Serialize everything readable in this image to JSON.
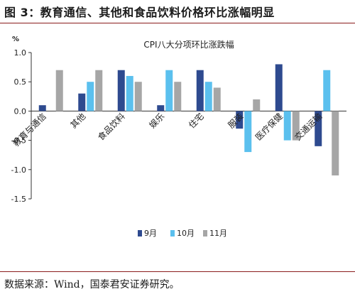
{
  "figure": {
    "title": "图 3：教育通信、其他和食品饮料价格环比涨幅明显",
    "source": "数据来源：Wind，国泰君安证券研究。"
  },
  "colors": {
    "sep": "#2e4a8f",
    "oct": "#5bc0ee",
    "nov": "#a6a6a6",
    "rule": "#8a1c1c"
  },
  "chart_data": {
    "type": "bar",
    "title": "CPI八大分项环比涨跌幅",
    "ylabel": "%",
    "ylim": [
      -1.5,
      1.0
    ],
    "yticks": [
      1.0,
      0.5,
      0.0,
      -0.5,
      -1.0,
      -1.5
    ],
    "ytick_labels": [
      "1.0",
      "0.5",
      "0.0",
      "-0.5",
      "-1.0",
      "-1.5"
    ],
    "grid": false,
    "legend_position": "bottom",
    "categories": [
      "教育与通信",
      "其他",
      "食品饮料",
      "娱乐",
      "住宅",
      "服装",
      "医疗保健",
      "交通运输"
    ],
    "series": [
      {
        "name": "9月",
        "values": [
          0.1,
          0.3,
          0.7,
          0.1,
          0.7,
          -0.3,
          0.8,
          -0.6
        ]
      },
      {
        "name": "10月",
        "values": [
          0.0,
          0.5,
          0.6,
          0.7,
          0.5,
          -0.7,
          -0.5,
          0.7
        ]
      },
      {
        "name": "11月",
        "values": [
          0.7,
          0.7,
          0.5,
          0.5,
          0.4,
          0.2,
          -0.5,
          -1.1
        ]
      }
    ]
  }
}
